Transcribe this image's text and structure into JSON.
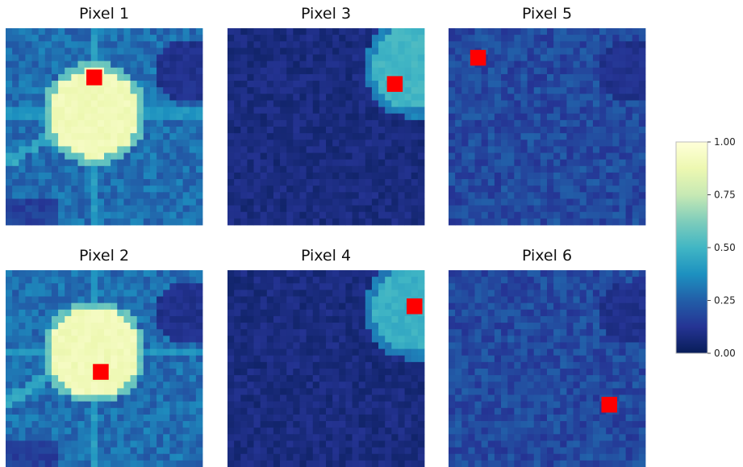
{
  "chart_data": {
    "type": "heatmap",
    "panels": [
      {
        "title": "Pixel 1",
        "row": 0,
        "col": 0,
        "marker": {
          "col": 13,
          "row": 7
        },
        "blobs": [
          {
            "cx": 13.5,
            "cy": 13,
            "r": 6.8,
            "value": 0.92
          }
        ],
        "streaks": true,
        "dark_corner": "top-right"
      },
      {
        "title": "Pixel 3",
        "row": 0,
        "col": 1,
        "marker": {
          "col": 25,
          "row": 8
        },
        "blobs": [
          {
            "cx": 28.5,
            "cy": 6,
            "r": 6.5,
            "value": 0.52
          }
        ],
        "streaks": false,
        "dark_corner": "none"
      },
      {
        "title": "Pixel 5",
        "row": 0,
        "col": 2,
        "marker": {
          "col": 4,
          "row": 4
        },
        "blobs": [],
        "streaks": false,
        "dark_corner": "top-right"
      },
      {
        "title": "Pixel 2",
        "row": 1,
        "col": 0,
        "marker": {
          "col": 14,
          "row": 15
        },
        "blobs": [
          {
            "cx": 13.5,
            "cy": 12.5,
            "r": 6.8,
            "value": 0.92
          }
        ],
        "streaks": true,
        "dark_corner": "top-right"
      },
      {
        "title": "Pixel 4",
        "row": 1,
        "col": 1,
        "marker": {
          "col": 28,
          "row": 5
        },
        "blobs": [
          {
            "cx": 28.5,
            "cy": 6,
            "r": 6.5,
            "value": 0.5
          }
        ],
        "streaks": false,
        "dark_corner": "none"
      },
      {
        "title": "Pixel 6",
        "row": 1,
        "col": 2,
        "marker": {
          "col": 24,
          "row": 20
        },
        "blobs": [],
        "streaks": false,
        "dark_corner": "top-right"
      }
    ],
    "grid_size": 30,
    "colormap": "YlGnBu",
    "marker_color": "#ff0000",
    "colorbar": {
      "ticks": [
        "1.00",
        "0.75",
        "0.50",
        "0.25",
        "0.00"
      ],
      "range": [
        0,
        1
      ]
    }
  }
}
